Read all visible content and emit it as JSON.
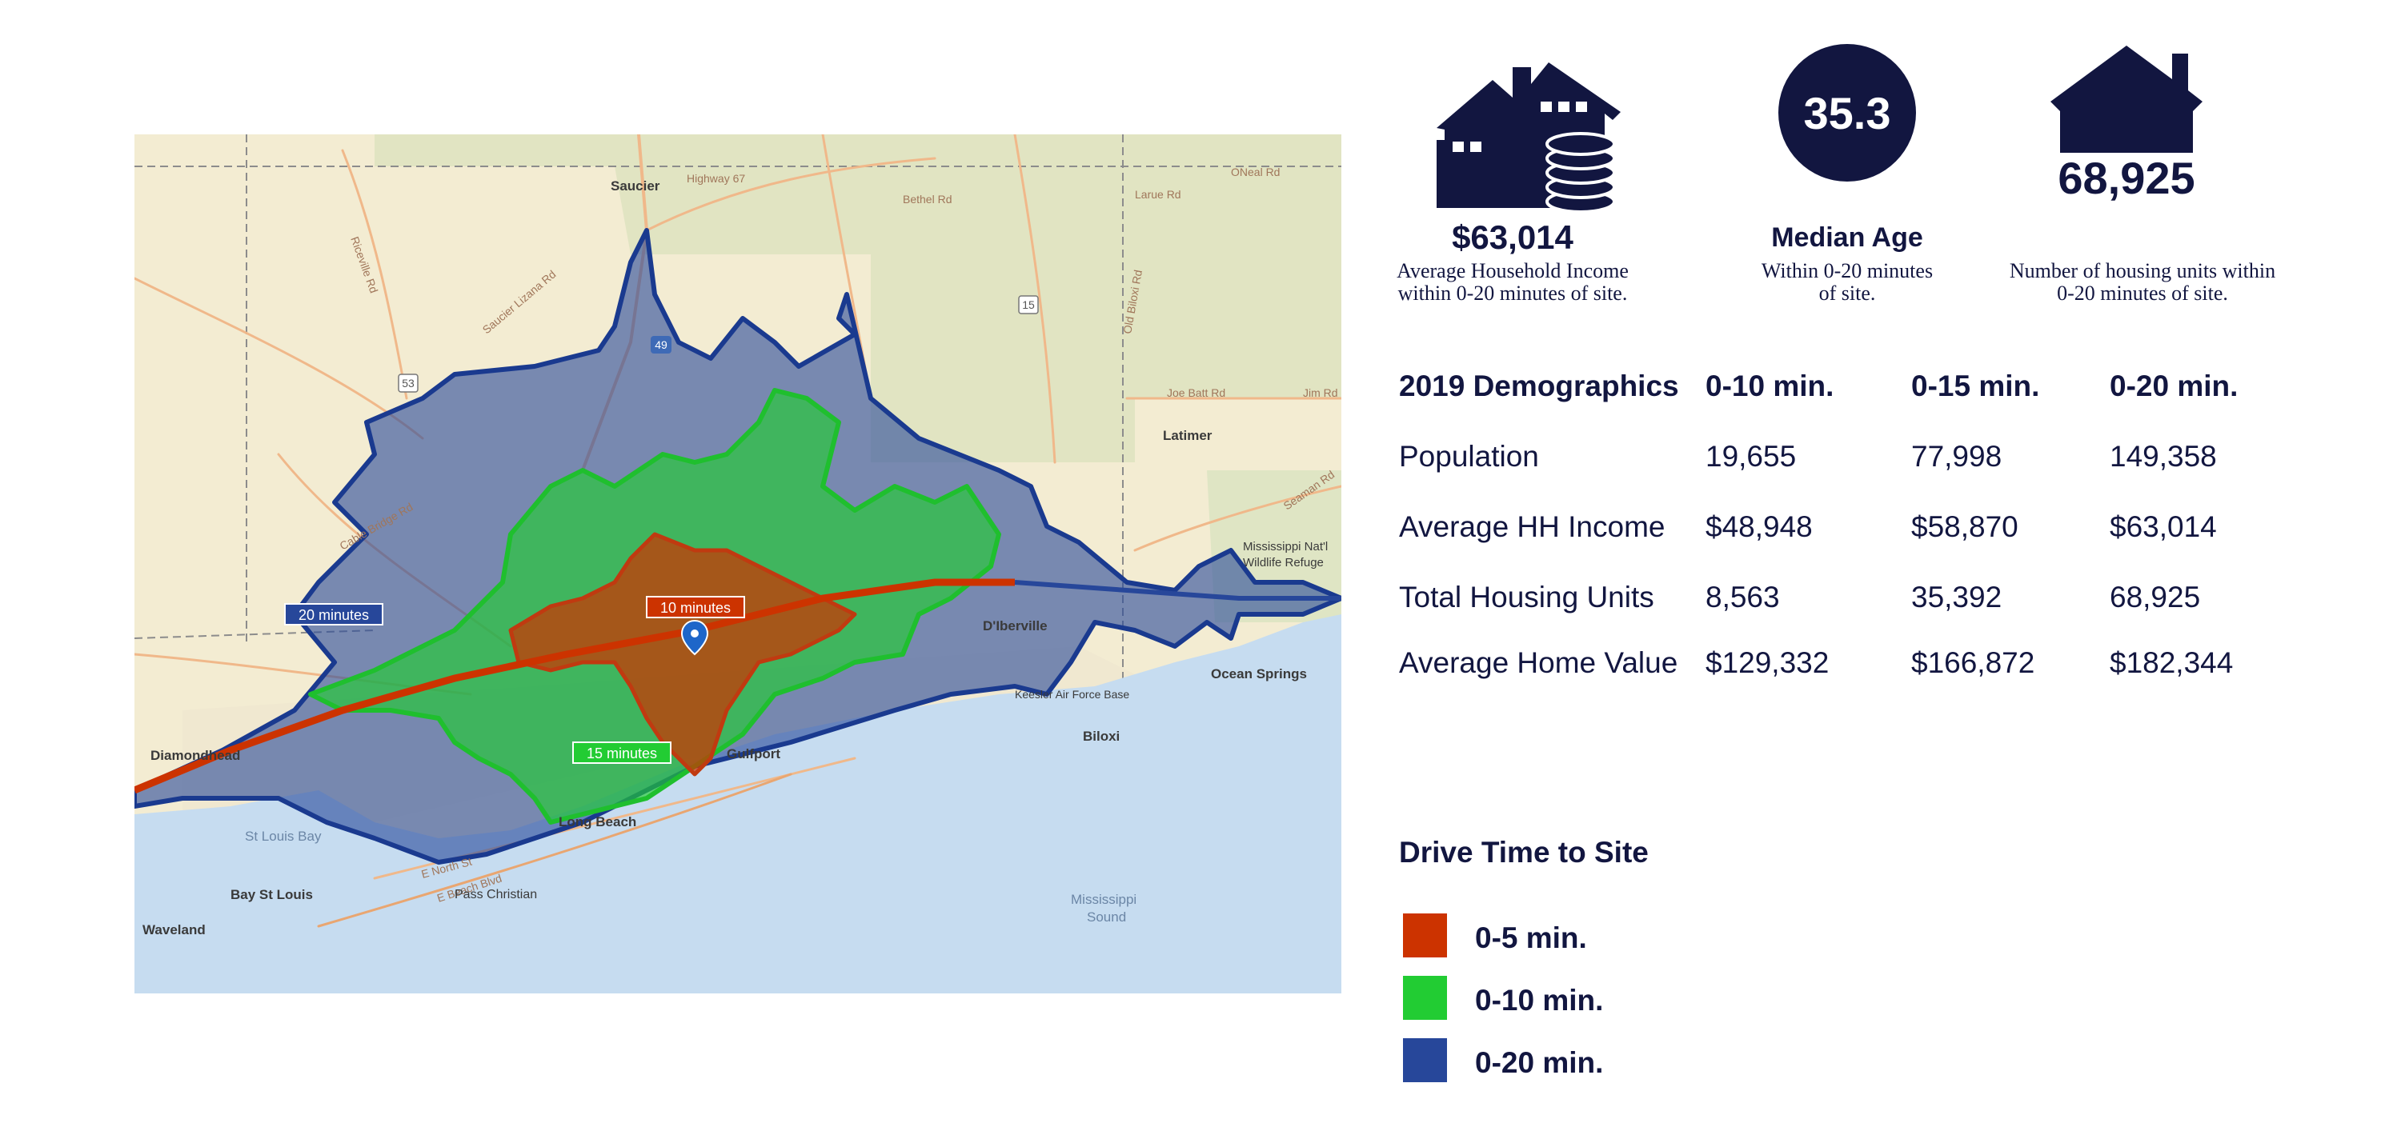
{
  "colors": {
    "navy": "#121640",
    "zone_5": "#cc3300",
    "zone_10": "#22cc33",
    "zone_20": "#27479a",
    "water": "#c6dcf0",
    "land": "#f3ecd2"
  },
  "map": {
    "zone_tags": {
      "twenty": "20 minutes",
      "ten": "10 minutes",
      "fifteen": "15 minutes"
    },
    "places": {
      "saucier": "Saucier",
      "latimer": "Latimer",
      "diamondhead": "Diamondhead",
      "bay_st_louis": "Bay St Louis",
      "waveland": "Waveland",
      "pass_christian": "Pass Christian",
      "long_beach": "Long Beach",
      "gulfport": "Gulfport",
      "dberville": "D'Iberville",
      "biloxi": "Biloxi",
      "ocean_springs": "Ocean Springs",
      "keesler": "Keesler Air Force Base",
      "mississippi_natl": "Mississippi Nat'l",
      "wildlife_refuge": "Wildlife Refuge"
    },
    "waters": {
      "st_louis_bay": "St Louis Bay",
      "mississippi_sound_1": "Mississippi",
      "mississippi_sound_2": "Sound"
    },
    "roads": {
      "highway_67": "Highway 67",
      "bethel_rd": "Bethel Rd",
      "larue_rd": "Larue Rd",
      "oneal_rd": "ONeal Rd",
      "joe_batt_rd": "Joe Batt Rd",
      "jim_rd": "Jim Rd",
      "cable_bridge_rd": "Cable Bridge Rd",
      "riceville_rd": "Riceville Rd",
      "saucier_lizana_rd": "Saucier Lizana Rd",
      "old_biloxi_rd": "Old Biloxi Rd",
      "e_north_st": "E North St",
      "e_beach_blvd": "E Beach Blvd",
      "seaman_rd": "Seaman Rd",
      "shield_49": "49",
      "shield_15": "15",
      "shield_53": "53"
    }
  },
  "stats": {
    "income": {
      "value": "$63,014",
      "caption_line1": "Average Household Income",
      "caption_line2": "within 0-20 minutes of site."
    },
    "age": {
      "value": "35.3",
      "title": "Median Age",
      "caption_line1": "Within 0-20 minutes",
      "caption_line2": "of site."
    },
    "housing": {
      "value": "68,925",
      "caption_line1": "Number of housing units within",
      "caption_line2": "0-20 minutes of site."
    }
  },
  "demographics": {
    "header": [
      "2019 Demographics",
      "0-10 min.",
      "0-15 min.",
      "0-20 min."
    ],
    "rows": [
      [
        "Population",
        "19,655",
        "77,998",
        "149,358"
      ],
      [
        "Average HH Income",
        "$48,948",
        "$58,870",
        "$63,014"
      ],
      [
        "Total Housing Units",
        "8,563",
        "35,392",
        "68,925"
      ],
      [
        "Average Home Value",
        "$129,332",
        "$166,872",
        "$182,344"
      ]
    ]
  },
  "legend": {
    "title": "Drive Time to Site",
    "items": [
      {
        "label": "0-5 min.",
        "color": "#cc3300"
      },
      {
        "label": "0-10 min.",
        "color": "#22cc33"
      },
      {
        "label": "0-20 min.",
        "color": "#27479a"
      }
    ]
  }
}
